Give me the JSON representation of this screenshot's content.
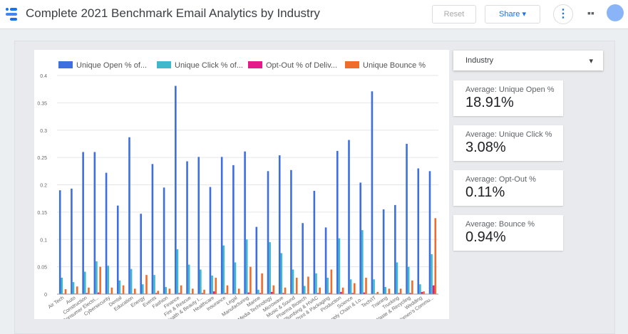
{
  "header": {
    "title": "Complete 2021 Benchmark Email Analytics by Industry",
    "reset": "Reset",
    "share": "Share"
  },
  "filter": {
    "label": "Industry"
  },
  "scorecards": [
    {
      "label": "Average: Unique Open %",
      "value": "18.91%"
    },
    {
      "label": "Average: Unique Click %",
      "value": "3.08%"
    },
    {
      "label": "Average: Opt-Out %",
      "value": "0.11%"
    },
    {
      "label": "Average: Bounce %",
      "value": "0.94%"
    }
  ],
  "chart_data": {
    "type": "bar",
    "categories": [
      "Air Tech",
      "Auto",
      "Construction",
      "Consumer Electri...",
      "Cybersecurity",
      "Dental",
      "Education",
      "Energy",
      "Events",
      "Fashion",
      "Finance",
      "Fire & Rescue",
      "Health & Beauty I...",
      "Healthcare",
      "Insurance",
      "Legal",
      "Manufacturing",
      "Marine",
      "Media Technology",
      "Microwave",
      "Music & Sound",
      "Pharma Biotech",
      "Plumbing & HVAC",
      "Print & Packaging",
      "Production",
      "Science",
      "Supply Chain & Lo...",
      "Tech/IT",
      "Training",
      "Trucking",
      "Waste & Recycling",
      "Wedding",
      "Women's Commu..."
    ],
    "series": [
      {
        "name": "Unique Open % of...",
        "color": "#3e6fe0",
        "values": [
          0.19,
          0.193,
          0.26,
          0.26,
          0.222,
          0.162,
          0.287,
          0.147,
          0.238,
          0.195,
          0.381,
          0.243,
          0.251,
          0.196,
          0.251,
          0.236,
          0.261,
          0.123,
          0.225,
          0.254,
          0.227,
          0.13,
          0.189,
          0.122,
          0.262,
          0.282,
          0.204,
          0.371,
          0.155,
          0.163,
          0.275,
          0.23,
          0.225
        ]
      },
      {
        "name": "Unique Click % of...",
        "color": "#3fb8cc",
        "values": [
          0.03,
          0.022,
          0.041,
          0.06,
          0.052,
          0.025,
          0.046,
          0.018,
          0.035,
          0.013,
          0.082,
          0.054,
          0.045,
          0.034,
          0.089,
          0.058,
          0.1,
          0.008,
          0.095,
          0.075,
          0.045,
          0.015,
          0.038,
          0.03,
          0.102,
          0.027,
          0.117,
          0.027,
          0.013,
          0.058,
          0.05,
          0.018,
          0.073
        ]
      },
      {
        "name": "Opt-Out % of Deliv...",
        "color": "#e6198a",
        "values": [
          0.001,
          0.001,
          0.002,
          0.003,
          0.001,
          0.001,
          0.001,
          0.001,
          0.002,
          0.001,
          0.002,
          0.001,
          0.002,
          0.005,
          0.002,
          0.001,
          0.003,
          0.002,
          0.004,
          0.002,
          0.001,
          0.001,
          0.002,
          0.002,
          0.004,
          0.002,
          0.003,
          0.001,
          0.001,
          0.002,
          0.002,
          0.004,
          0.016
        ]
      },
      {
        "name": "Unique Bounce %",
        "color": "#ef6c2b",
        "values": [
          0.009,
          0.014,
          0.012,
          0.05,
          0.012,
          0.016,
          0.01,
          0.035,
          0.006,
          0.01,
          0.016,
          0.01,
          0.008,
          0.03,
          0.016,
          0.01,
          0.05,
          0.038,
          0.016,
          0.012,
          0.03,
          0.032,
          0.012,
          0.045,
          0.012,
          0.02,
          0.03,
          0.004,
          0.01,
          0.01,
          0.025,
          0.005,
          0.139
        ]
      }
    ],
    "ylim": [
      0,
      0.4
    ],
    "yticks": [
      0,
      0.05,
      0.1,
      0.15,
      0.2,
      0.25,
      0.3,
      0.35,
      0.4
    ],
    "grid": true
  }
}
